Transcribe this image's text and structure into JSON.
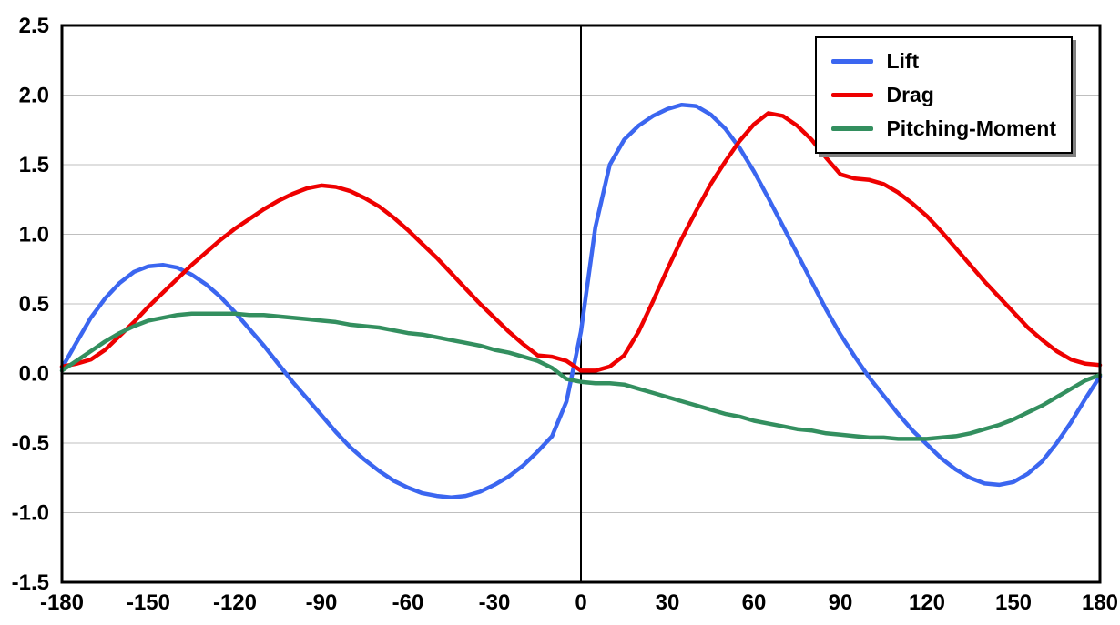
{
  "chart_data": {
    "type": "line",
    "title": "",
    "xlabel": "",
    "ylabel": "",
    "xlim": [
      -180,
      180
    ],
    "ylim": [
      -1.5,
      2.5
    ],
    "x_ticks": [
      -180,
      -150,
      -120,
      -90,
      -60,
      -30,
      0,
      30,
      60,
      90,
      120,
      150,
      180
    ],
    "y_ticks": [
      -1.5,
      -1.0,
      -0.5,
      0.0,
      0.5,
      1.0,
      1.5,
      2.0,
      2.5
    ],
    "grid": "horizontal",
    "grid_color": "#bfbfbf",
    "axis_color": "#000000",
    "legend_position": "top-right",
    "x": [
      -180,
      -175,
      -170,
      -165,
      -160,
      -155,
      -150,
      -145,
      -140,
      -135,
      -130,
      -125,
      -120,
      -115,
      -110,
      -105,
      -100,
      -95,
      -90,
      -85,
      -80,
      -75,
      -70,
      -65,
      -60,
      -55,
      -50,
      -45,
      -40,
      -35,
      -30,
      -25,
      -20,
      -15,
      -10,
      -5,
      0,
      5,
      10,
      15,
      20,
      25,
      30,
      35,
      40,
      45,
      50,
      55,
      60,
      65,
      70,
      75,
      80,
      85,
      90,
      95,
      100,
      105,
      110,
      115,
      120,
      125,
      130,
      135,
      140,
      145,
      150,
      155,
      160,
      165,
      170,
      175,
      180
    ],
    "series": [
      {
        "name": "Lift",
        "color": "#3b66f0",
        "values": [
          0.04,
          0.22,
          0.4,
          0.54,
          0.65,
          0.73,
          0.77,
          0.78,
          0.76,
          0.71,
          0.64,
          0.55,
          0.44,
          0.32,
          0.2,
          0.07,
          -0.06,
          -0.18,
          -0.3,
          -0.42,
          -0.53,
          -0.62,
          -0.7,
          -0.77,
          -0.82,
          -0.86,
          -0.88,
          -0.89,
          -0.88,
          -0.85,
          -0.8,
          -0.74,
          -0.66,
          -0.56,
          -0.45,
          -0.2,
          0.3,
          1.05,
          1.5,
          1.68,
          1.78,
          1.85,
          1.9,
          1.93,
          1.92,
          1.86,
          1.76,
          1.62,
          1.45,
          1.26,
          1.06,
          0.86,
          0.66,
          0.46,
          0.28,
          0.12,
          -0.03,
          -0.16,
          -0.29,
          -0.41,
          -0.51,
          -0.61,
          -0.69,
          -0.75,
          -0.79,
          -0.8,
          -0.78,
          -0.72,
          -0.63,
          -0.5,
          -0.35,
          -0.18,
          -0.02
        ]
      },
      {
        "name": "Drag",
        "color": "#ee0000",
        "values": [
          0.05,
          0.07,
          0.1,
          0.17,
          0.27,
          0.37,
          0.48,
          0.58,
          0.68,
          0.78,
          0.87,
          0.96,
          1.04,
          1.11,
          1.18,
          1.24,
          1.29,
          1.33,
          1.35,
          1.34,
          1.31,
          1.26,
          1.2,
          1.12,
          1.03,
          0.93,
          0.83,
          0.72,
          0.61,
          0.5,
          0.4,
          0.3,
          0.21,
          0.13,
          0.12,
          0.09,
          0.02,
          0.02,
          0.05,
          0.13,
          0.3,
          0.52,
          0.75,
          0.97,
          1.17,
          1.36,
          1.52,
          1.67,
          1.79,
          1.87,
          1.85,
          1.78,
          1.68,
          1.55,
          1.43,
          1.4,
          1.39,
          1.36,
          1.3,
          1.22,
          1.13,
          1.02,
          0.9,
          0.78,
          0.66,
          0.55,
          0.44,
          0.33,
          0.24,
          0.16,
          0.1,
          0.07,
          0.06
        ]
      },
      {
        "name": "Pitching-Moment",
        "color": "#338f5f",
        "values": [
          0.02,
          0.09,
          0.16,
          0.23,
          0.29,
          0.34,
          0.38,
          0.4,
          0.42,
          0.43,
          0.43,
          0.43,
          0.43,
          0.42,
          0.42,
          0.41,
          0.4,
          0.39,
          0.38,
          0.37,
          0.35,
          0.34,
          0.33,
          0.31,
          0.29,
          0.28,
          0.26,
          0.24,
          0.22,
          0.2,
          0.17,
          0.15,
          0.12,
          0.09,
          0.04,
          -0.04,
          -0.06,
          -0.07,
          -0.07,
          -0.08,
          -0.11,
          -0.14,
          -0.17,
          -0.2,
          -0.23,
          -0.26,
          -0.29,
          -0.31,
          -0.34,
          -0.36,
          -0.38,
          -0.4,
          -0.41,
          -0.43,
          -0.44,
          -0.45,
          -0.46,
          -0.46,
          -0.47,
          -0.47,
          -0.47,
          -0.46,
          -0.45,
          -0.43,
          -0.4,
          -0.37,
          -0.33,
          -0.28,
          -0.23,
          -0.17,
          -0.11,
          -0.05,
          -0.01
        ]
      }
    ]
  }
}
